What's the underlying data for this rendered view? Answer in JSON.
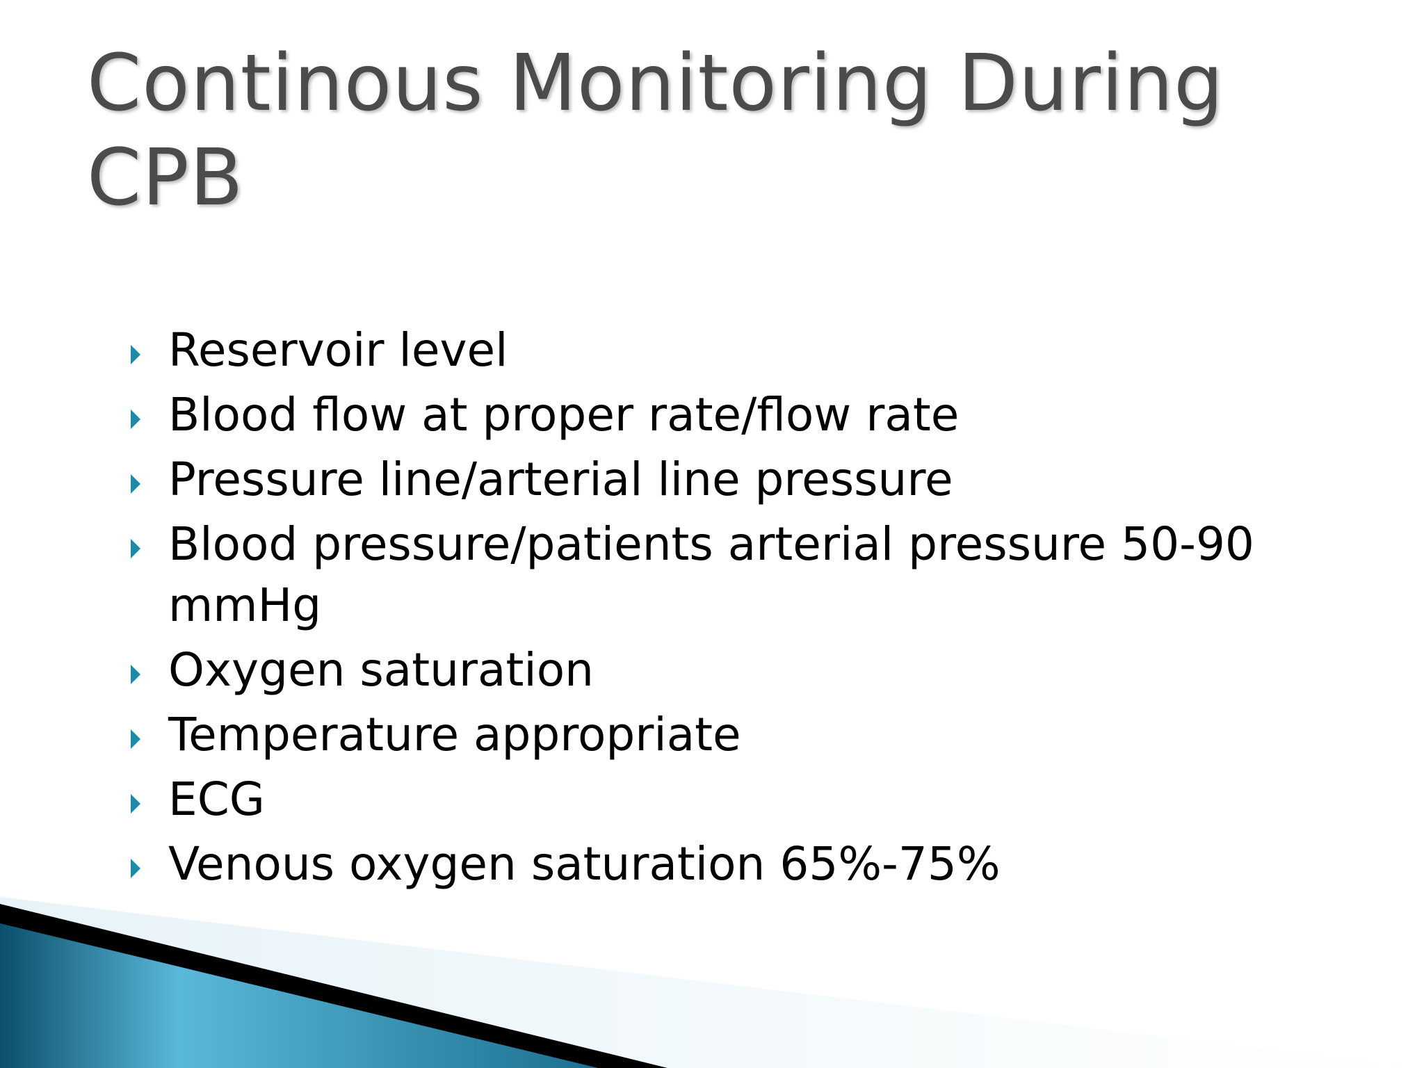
{
  "slide": {
    "title": "Continous Monitoring During CPB",
    "bullets": [
      "Reservoir level",
      "Blood flow at proper rate/flow rate",
      "Pressure line/arterial line pressure",
      "Blood pressure/patients arterial pressure 50-90 mmHg",
      "Oxygen saturation",
      "Temperature appropriate",
      "ECG",
      "Venous oxygen saturation 65%-75%"
    ]
  },
  "colors": {
    "title": "#4b4b4b",
    "text": "#000000",
    "bullet": "#1f8aa8",
    "accent_dark": "#0b4f6b",
    "accent_light": "#5ab8d8"
  }
}
